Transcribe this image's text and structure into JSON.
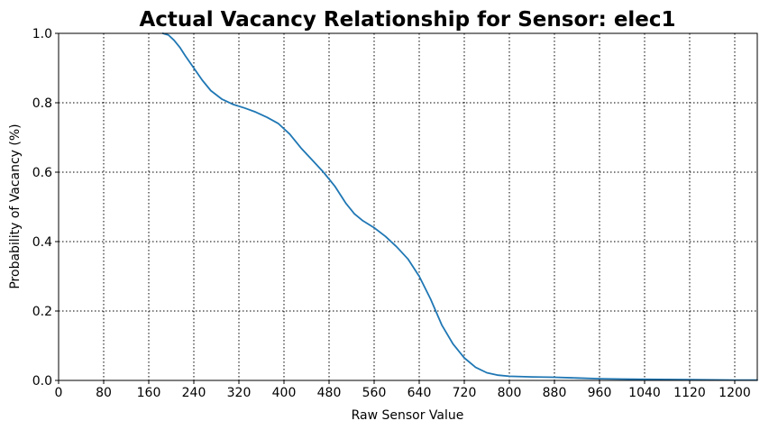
{
  "chart_data": {
    "type": "line",
    "title": "Actual Vacancy Relationship for Sensor: elec1",
    "xlabel": "Raw Sensor Value",
    "ylabel": "Probability of Vacancy (%)",
    "xlim": [
      0,
      1240
    ],
    "ylim": [
      0.0,
      1.0
    ],
    "xticks": [
      0,
      80,
      160,
      240,
      320,
      400,
      480,
      560,
      640,
      720,
      800,
      880,
      960,
      1040,
      1120,
      1200
    ],
    "xtick_labels": [
      "0",
      "80",
      "160",
      "240",
      "320",
      "400",
      "480",
      "560",
      "640",
      "720",
      "800",
      "880",
      "960",
      "1040",
      "1120",
      "1200"
    ],
    "yticks": [
      0.0,
      0.2,
      0.4,
      0.6,
      0.8,
      1.0
    ],
    "ytick_labels": [
      "0.0",
      "0.2",
      "0.4",
      "0.6",
      "0.8",
      "1.0"
    ],
    "grid": true,
    "line_color": "#1f77b4",
    "series": [
      {
        "name": "",
        "x": [
          185,
          195,
          205,
          215,
          225,
          240,
          255,
          270,
          290,
          310,
          330,
          350,
          370,
          390,
          410,
          430,
          450,
          470,
          490,
          510,
          525,
          540,
          560,
          580,
          600,
          620,
          640,
          660,
          680,
          700,
          720,
          740,
          760,
          780,
          800,
          840,
          880,
          920,
          960,
          1000,
          1040,
          1120,
          1200,
          1240
        ],
        "y": [
          1.0,
          0.995,
          0.98,
          0.96,
          0.935,
          0.9,
          0.865,
          0.835,
          0.81,
          0.795,
          0.785,
          0.773,
          0.758,
          0.74,
          0.71,
          0.67,
          0.635,
          0.6,
          0.56,
          0.51,
          0.48,
          0.46,
          0.44,
          0.415,
          0.385,
          0.35,
          0.3,
          0.235,
          0.16,
          0.105,
          0.065,
          0.038,
          0.022,
          0.015,
          0.012,
          0.01,
          0.009,
          0.007,
          0.005,
          0.004,
          0.003,
          0.002,
          0.001,
          0.001
        ]
      }
    ]
  }
}
